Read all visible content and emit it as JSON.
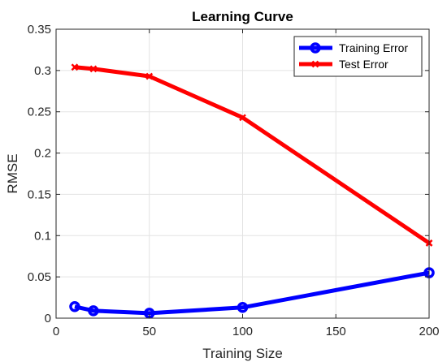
{
  "chart_data": {
    "type": "line",
    "title": "Learning Curve",
    "xlabel": "Training Size",
    "ylabel": "RMSE",
    "xlim": [
      0,
      200
    ],
    "ylim": [
      0,
      0.35
    ],
    "xticks": [
      0,
      50,
      100,
      150,
      200
    ],
    "xtick_labels": [
      "0",
      "50",
      "100",
      "150",
      "200"
    ],
    "yticks": [
      0,
      0.05,
      0.1,
      0.15,
      0.2,
      0.25,
      0.3,
      0.35
    ],
    "ytick_labels": [
      "0",
      "0.05",
      "0.1",
      "0.15",
      "0.2",
      "0.25",
      "0.3",
      "0.35"
    ],
    "grid": true,
    "legend_position": "top-right",
    "series": [
      {
        "name": "Training Error",
        "color": "#0000ff",
        "marker": "circle",
        "x": [
          10,
          20,
          50,
          100,
          200
        ],
        "y": [
          0.014,
          0.009,
          0.006,
          0.013,
          0.055
        ]
      },
      {
        "name": "Test Error",
        "color": "#ff0000",
        "marker": "x",
        "x": [
          10,
          20,
          50,
          100,
          200
        ],
        "y": [
          0.304,
          0.302,
          0.293,
          0.243,
          0.091
        ]
      }
    ]
  }
}
